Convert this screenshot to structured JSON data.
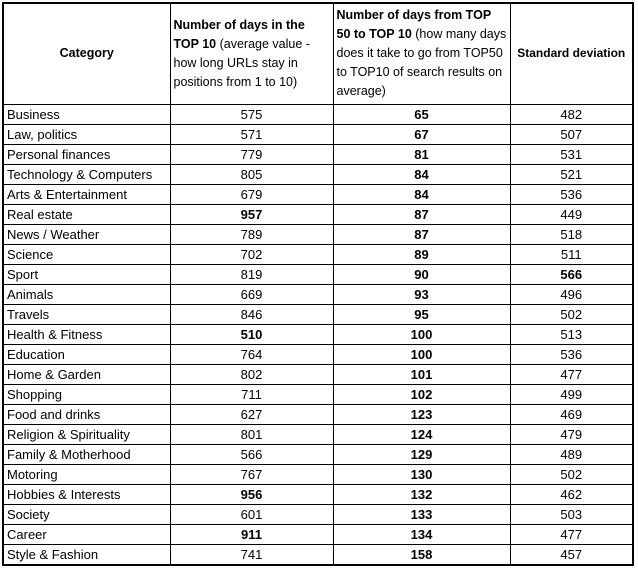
{
  "chart_data": {
    "type": "table",
    "columns": [
      {
        "title": "Category",
        "subtitle": ""
      },
      {
        "title": "Number of days in the TOP 10",
        "subtitle": " (average value - how long URLs stay in positions from 1 to 10)"
      },
      {
        "title": "Number of days from TOP 50 to TOP 10",
        "subtitle": " (how many days does it take to go from TOP50 to TOP10 of search results on average)"
      },
      {
        "title": "Standard deviation",
        "subtitle": ""
      }
    ],
    "rows": [
      {
        "category": "Business",
        "days_in_top10": 575,
        "days_in_top10_bold": false,
        "days_top50_to_top10": 65,
        "std_dev": 482,
        "std_dev_bold": false
      },
      {
        "category": "Law, politics",
        "days_in_top10": 571,
        "days_in_top10_bold": false,
        "days_top50_to_top10": 67,
        "std_dev": 507,
        "std_dev_bold": false
      },
      {
        "category": "Personal finances",
        "days_in_top10": 779,
        "days_in_top10_bold": false,
        "days_top50_to_top10": 81,
        "std_dev": 531,
        "std_dev_bold": false
      },
      {
        "category": "Technology & Computers",
        "days_in_top10": 805,
        "days_in_top10_bold": false,
        "days_top50_to_top10": 84,
        "std_dev": 521,
        "std_dev_bold": false
      },
      {
        "category": "Arts & Entertainment",
        "days_in_top10": 679,
        "days_in_top10_bold": false,
        "days_top50_to_top10": 84,
        "std_dev": 536,
        "std_dev_bold": false
      },
      {
        "category": "Real estate",
        "days_in_top10": 957,
        "days_in_top10_bold": true,
        "days_top50_to_top10": 87,
        "std_dev": 449,
        "std_dev_bold": false
      },
      {
        "category": "News / Weather",
        "days_in_top10": 789,
        "days_in_top10_bold": false,
        "days_top50_to_top10": 87,
        "std_dev": 518,
        "std_dev_bold": false
      },
      {
        "category": "Science",
        "days_in_top10": 702,
        "days_in_top10_bold": false,
        "days_top50_to_top10": 89,
        "std_dev": 511,
        "std_dev_bold": false
      },
      {
        "category": "Sport",
        "days_in_top10": 819,
        "days_in_top10_bold": false,
        "days_top50_to_top10": 90,
        "std_dev": 566,
        "std_dev_bold": true
      },
      {
        "category": "Animals",
        "days_in_top10": 669,
        "days_in_top10_bold": false,
        "days_top50_to_top10": 93,
        "std_dev": 496,
        "std_dev_bold": false
      },
      {
        "category": "Travels",
        "days_in_top10": 846,
        "days_in_top10_bold": false,
        "days_top50_to_top10": 95,
        "std_dev": 502,
        "std_dev_bold": false
      },
      {
        "category": "Health & Fitness",
        "days_in_top10": 510,
        "days_in_top10_bold": true,
        "days_top50_to_top10": 100,
        "std_dev": 513,
        "std_dev_bold": false
      },
      {
        "category": "Education",
        "days_in_top10": 764,
        "days_in_top10_bold": false,
        "days_top50_to_top10": 100,
        "std_dev": 536,
        "std_dev_bold": false
      },
      {
        "category": "Home & Garden",
        "days_in_top10": 802,
        "days_in_top10_bold": false,
        "days_top50_to_top10": 101,
        "std_dev": 477,
        "std_dev_bold": false
      },
      {
        "category": "Shopping",
        "days_in_top10": 711,
        "days_in_top10_bold": false,
        "days_top50_to_top10": 102,
        "std_dev": 499,
        "std_dev_bold": false
      },
      {
        "category": "Food and drinks",
        "days_in_top10": 627,
        "days_in_top10_bold": false,
        "days_top50_to_top10": 123,
        "std_dev": 469,
        "std_dev_bold": false
      },
      {
        "category": "Religion & Spirituality",
        "days_in_top10": 801,
        "days_in_top10_bold": false,
        "days_top50_to_top10": 124,
        "std_dev": 479,
        "std_dev_bold": false
      },
      {
        "category": "Family & Motherhood",
        "days_in_top10": 566,
        "days_in_top10_bold": false,
        "days_top50_to_top10": 129,
        "std_dev": 489,
        "std_dev_bold": false
      },
      {
        "category": "Motoring",
        "days_in_top10": 767,
        "days_in_top10_bold": false,
        "days_top50_to_top10": 130,
        "std_dev": 502,
        "std_dev_bold": false
      },
      {
        "category": "Hobbies & Interests",
        "days_in_top10": 956,
        "days_in_top10_bold": true,
        "days_top50_to_top10": 132,
        "std_dev": 462,
        "std_dev_bold": false
      },
      {
        "category": "Society",
        "days_in_top10": 601,
        "days_in_top10_bold": false,
        "days_top50_to_top10": 133,
        "std_dev": 503,
        "std_dev_bold": false
      },
      {
        "category": "Career",
        "days_in_top10": 911,
        "days_in_top10_bold": true,
        "days_top50_to_top10": 134,
        "std_dev": 477,
        "std_dev_bold": false
      },
      {
        "category": "Style & Fashion",
        "days_in_top10": 741,
        "days_in_top10_bold": false,
        "days_top50_to_top10": 158,
        "std_dev": 457,
        "std_dev_bold": false
      }
    ]
  }
}
